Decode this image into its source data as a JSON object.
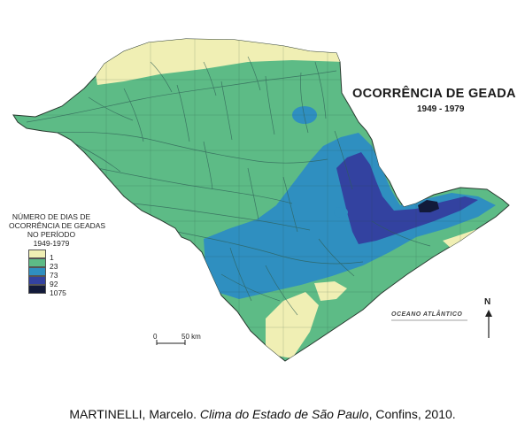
{
  "map": {
    "title": "OCORRÊNCIA DE GEADA",
    "period": "1949 - 1979",
    "ocean_label": "OCEANO ATLÂNTICO",
    "north_label": "N"
  },
  "legend": {
    "title_lines": [
      "NÚMERO DE DIAS DE",
      "OCORRÊNCIA DE GEADAS",
      "NO PERÍODO",
      "1949-1979"
    ],
    "classes": [
      {
        "label": "1",
        "color": "#f0efb4"
      },
      {
        "label": "23",
        "color": "#5dbb86"
      },
      {
        "label": "73",
        "color": "#2f8fc0"
      },
      {
        "label": "92",
        "color": "#3342a0"
      },
      {
        "label": "1075",
        "color": "#121a3a"
      }
    ]
  },
  "scale": {
    "start_label": "0",
    "end_label": "50 km"
  },
  "caption": {
    "author": "MARTINELLI, Marcelo. ",
    "work": "Clima do Estado de São Paulo",
    "rest": ", Confins, 2010."
  },
  "colors": {
    "class_1": "#f0efb4",
    "class_23": "#5dbb86",
    "class_73": "#2f8fc0",
    "class_92": "#3342a0",
    "class_1075": "#121a3a",
    "rivers": "#2f5f56"
  }
}
